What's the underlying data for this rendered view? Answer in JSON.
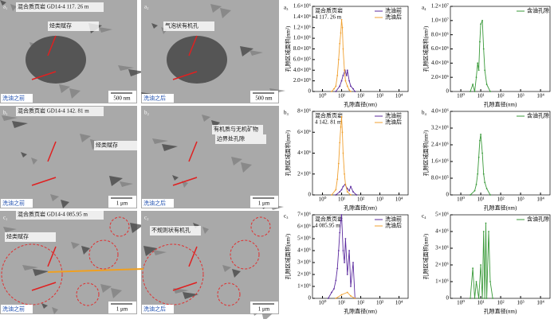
{
  "panels": [
    {
      "label": "a₁",
      "notes": [
        "混合质页岩 GD14-4 117. 26 m",
        "烃类赋存"
      ],
      "stage": "洗油之前",
      "scale": "500 nm"
    },
    {
      "label": "a₂",
      "notes": [
        "气泡状有机孔"
      ],
      "stage": "洗油之后",
      "scale": "500 nm"
    },
    {
      "label": "b₁",
      "notes": [
        "混合质页岩 GD14-4 142. 81 m",
        "烃类赋存"
      ],
      "stage": "洗油之前",
      "scale": "1 μm"
    },
    {
      "label": "b₂",
      "notes": [
        "有机质与无机矿物",
        "边界处孔隙"
      ],
      "stage": "洗油之后",
      "scale": "1 μm"
    },
    {
      "label": "c₁",
      "notes": [
        "混合质页岩 GD14-4 085.95 m",
        "烃类赋存"
      ],
      "stage": "洗油之前",
      "scale": "1 μm"
    },
    {
      "label": "c₂",
      "notes": [
        "不规则状有机孔"
      ],
      "stage": "洗油之后",
      "scale": "1 μm"
    }
  ],
  "chart_data": [
    {
      "type": "line",
      "panel_label": "a₃",
      "annotation": [
        "混合质页岩",
        "4 117. 26 m"
      ],
      "x_label": "孔隙直径(nm)",
      "y_label": "孔隙区域面积(nm²)",
      "log_x": true,
      "legend": "top-right",
      "xlim": [
        0.3,
        30000
      ],
      "xticks": [
        {
          "value": 1,
          "label": "10⁰"
        },
        {
          "value": 10,
          "label": "10¹"
        },
        {
          "value": 100,
          "label": "10²"
        },
        {
          "value": 1000,
          "label": "10³"
        },
        {
          "value": 10000,
          "label": "10⁴"
        }
      ],
      "ylim": [
        0,
        1600000
      ],
      "yticks": [
        {
          "value": 0,
          "label": "0"
        },
        {
          "value": 200000,
          "label": "2.0×10⁵"
        },
        {
          "value": 400000,
          "label": "4.0×10⁵"
        },
        {
          "value": 600000,
          "label": "6.0×10⁵"
        },
        {
          "value": 800000,
          "label": "8.0×10⁵"
        },
        {
          "value": 1000000,
          "label": "1.0×10⁶"
        },
        {
          "value": 1200000,
          "label": "1.2×10⁶"
        },
        {
          "value": 1400000,
          "label": "1.4×10⁶"
        },
        {
          "value": 1600000,
          "label": "1.6×10⁶"
        }
      ],
      "series": [
        {
          "name": "洗油前",
          "color": "#5b2a9e",
          "x": [
            5,
            8,
            10,
            12,
            15,
            18,
            20,
            25,
            30,
            40,
            50
          ],
          "values": [
            0,
            100000,
            200000,
            300000,
            400000,
            300000,
            400000,
            200000,
            100000,
            50000,
            0
          ]
        },
        {
          "name": "洗油后",
          "color": "#f0a030",
          "x": [
            3,
            4,
            5,
            6,
            7,
            8,
            9,
            10,
            11,
            12,
            14,
            16,
            20,
            25,
            30
          ],
          "values": [
            0,
            50000,
            100000,
            300000,
            600000,
            900000,
            1100000,
            1350000,
            1200000,
            800000,
            400000,
            200000,
            100000,
            30000,
            0
          ]
        }
      ]
    },
    {
      "type": "line",
      "panel_label": "a₄",
      "x_label": "孔隙直径(nm)",
      "y_label": "孔隙区域面积(nm²)",
      "log_x": true,
      "legend": "top-right",
      "xlim": [
        0.3,
        30000
      ],
      "xticks": [
        {
          "value": 1,
          "label": "10⁰"
        },
        {
          "value": 10,
          "label": "10¹"
        },
        {
          "value": 100,
          "label": "10²"
        },
        {
          "value": 1000,
          "label": "10³"
        },
        {
          "value": 10000,
          "label": "10⁴"
        }
      ],
      "ylim": [
        0,
        12000000
      ],
      "yticks": [
        {
          "value": 0,
          "label": "0"
        },
        {
          "value": 2000000,
          "label": "2.0×10⁶"
        },
        {
          "value": 4000000,
          "label": "4.0×10⁶"
        },
        {
          "value": 6000000,
          "label": "6.0×10⁶"
        },
        {
          "value": 8000000,
          "label": "8.0×10⁶"
        },
        {
          "value": 10000000,
          "label": "1.0×10⁷"
        },
        {
          "value": 12000000,
          "label": "1.2×10⁷"
        }
      ],
      "series": [
        {
          "name": "含油孔隙",
          "color": "#3a9a3a",
          "x": [
            3,
            4,
            5,
            6,
            7,
            8,
            9,
            10,
            12,
            14,
            16,
            20,
            30
          ],
          "values": [
            0,
            1000000,
            0,
            2000000,
            4000000,
            3000000,
            7000000,
            9500000,
            10000000,
            6000000,
            3000000,
            1000000,
            0
          ]
        }
      ]
    },
    {
      "type": "line",
      "panel_label": "b₃",
      "annotation": [
        "混合质页岩",
        "4 142. 81 m"
      ],
      "x_label": "孔隙直径(nm)",
      "y_label": "孔隙区域面积(nm²)",
      "log_x": true,
      "legend": "top-right",
      "xlim": [
        0.3,
        30000
      ],
      "xticks": [
        {
          "value": 1,
          "label": "10⁰"
        },
        {
          "value": 10,
          "label": "10¹"
        },
        {
          "value": 100,
          "label": "10²"
        },
        {
          "value": 1000,
          "label": "10³"
        },
        {
          "value": 10000,
          "label": "10⁴"
        }
      ],
      "ylim": [
        0,
        8000000
      ],
      "yticks": [
        {
          "value": 0,
          "label": "0"
        },
        {
          "value": 2000000,
          "label": "2×10⁶"
        },
        {
          "value": 4000000,
          "label": "4×10⁶"
        },
        {
          "value": 6000000,
          "label": "6×10⁶"
        },
        {
          "value": 8000000,
          "label": "8×10⁶"
        }
      ],
      "series": [
        {
          "name": "洗油前",
          "color": "#5b2a9e",
          "x": [
            5,
            8,
            10,
            12,
            15,
            20,
            25,
            30,
            40,
            60
          ],
          "values": [
            0,
            300000,
            500000,
            800000,
            1000000,
            600000,
            400000,
            800000,
            300000,
            0
          ]
        },
        {
          "name": "洗油后",
          "color": "#f0a030",
          "x": [
            3,
            5,
            6,
            7,
            8,
            9,
            10,
            11,
            12,
            14,
            16,
            20,
            30
          ],
          "values": [
            0,
            500000,
            1500000,
            3000000,
            5000000,
            6500000,
            7500000,
            6000000,
            4000000,
            2000000,
            1000000,
            300000,
            0
          ]
        }
      ]
    },
    {
      "type": "line",
      "panel_label": "b₄",
      "x_label": "孔隙直径(nm)",
      "y_label": "孔隙区域面积(nm²)",
      "log_x": true,
      "legend": "top-right",
      "xlim": [
        0.3,
        30000
      ],
      "xticks": [
        {
          "value": 1,
          "label": "10⁰"
        },
        {
          "value": 10,
          "label": "10¹"
        },
        {
          "value": 100,
          "label": "10²"
        },
        {
          "value": 1000,
          "label": "10³"
        },
        {
          "value": 10000,
          "label": "10⁴"
        }
      ],
      "ylim": [
        0,
        4000000
      ],
      "yticks": [
        {
          "value": 0,
          "label": "0"
        },
        {
          "value": 800000,
          "label": "8.0×10⁵"
        },
        {
          "value": 1600000,
          "label": "1.6×10⁶"
        },
        {
          "value": 2400000,
          "label": "2.4×10⁶"
        },
        {
          "value": 3200000,
          "label": "3.2×10⁶"
        },
        {
          "value": 4000000,
          "label": "4.0×10⁶"
        }
      ],
      "series": [
        {
          "name": "含油孔隙",
          "color": "#3a9a3a",
          "x": [
            3,
            5,
            6,
            7,
            8,
            9,
            10,
            12,
            14,
            16,
            20,
            30
          ],
          "values": [
            0,
            200000,
            500000,
            1000000,
            1800000,
            2600000,
            2900000,
            2000000,
            1000000,
            600000,
            300000,
            0
          ]
        }
      ]
    },
    {
      "type": "line",
      "panel_label": "c₃",
      "annotation": [
        "混合质页岩",
        "4 085.95 m"
      ],
      "x_label": "孔隙直径(nm)",
      "y_label": "孔隙区域面积(nm²)",
      "log_x": true,
      "legend": "top-right",
      "xlim": [
        0.3,
        30000
      ],
      "xticks": [
        {
          "value": 1,
          "label": "10⁰"
        },
        {
          "value": 10,
          "label": "10¹"
        },
        {
          "value": 100,
          "label": "10²"
        },
        {
          "value": 1000,
          "label": "10³"
        },
        {
          "value": 10000,
          "label": "10⁴"
        }
      ],
      "ylim": [
        0,
        7000000
      ],
      "yticks": [
        {
          "value": 0,
          "label": "0"
        },
        {
          "value": 1000000,
          "label": "1×10⁶"
        },
        {
          "value": 2000000,
          "label": "2×10⁶"
        },
        {
          "value": 3000000,
          "label": "3×10⁶"
        },
        {
          "value": 4000000,
          "label": "4×10⁶"
        },
        {
          "value": 5000000,
          "label": "5×10⁶"
        },
        {
          "value": 6000000,
          "label": "6×10⁶"
        },
        {
          "value": 7000000,
          "label": "7×10⁶"
        }
      ],
      "series": [
        {
          "name": "洗油前",
          "color": "#5b2a9e",
          "x": [
            2,
            3,
            4,
            5,
            6,
            7,
            8,
            9,
            10,
            12,
            14,
            16,
            20,
            25,
            30,
            40,
            50
          ],
          "values": [
            0,
            500000,
            800000,
            1500000,
            2500000,
            4000000,
            5500000,
            6500000,
            7000000,
            4000000,
            3000000,
            5000000,
            2000000,
            4000000,
            1000000,
            3000000,
            0
          ]
        },
        {
          "name": "洗油后",
          "color": "#f0a030",
          "x": [
            5,
            10,
            20,
            30,
            50
          ],
          "values": [
            0,
            300000,
            500000,
            200000,
            0
          ]
        }
      ]
    },
    {
      "type": "line",
      "panel_label": "c₄",
      "x_label": "孔隙直径(nm)",
      "y_label": "孔隙区域面积(nm²)",
      "log_x": true,
      "legend": "top-right",
      "xlim": [
        0.3,
        30000
      ],
      "xticks": [
        {
          "value": 1,
          "label": "10⁰"
        },
        {
          "value": 10,
          "label": "10¹"
        },
        {
          "value": 100,
          "label": "10²"
        },
        {
          "value": 1000,
          "label": "10³"
        },
        {
          "value": 10000,
          "label": "10⁴"
        }
      ],
      "ylim": [
        0,
        5000000
      ],
      "yticks": [
        {
          "value": 0,
          "label": "0"
        },
        {
          "value": 1000000,
          "label": "1×10⁶"
        },
        {
          "value": 2000000,
          "label": "2×10⁶"
        },
        {
          "value": 3000000,
          "label": "3×10⁶"
        },
        {
          "value": 4000000,
          "label": "4×10⁶"
        },
        {
          "value": 5000000,
          "label": "5×10⁶"
        }
      ],
      "series": [
        {
          "name": "含油孔隙",
          "color": "#3a9a3a",
          "x": [
            3,
            4,
            5,
            6,
            8,
            10,
            12,
            14,
            16,
            18,
            20,
            25,
            30,
            40
          ],
          "values": [
            0,
            1800000,
            0,
            1000000,
            0,
            2000000,
            0,
            4000000,
            0,
            4500000,
            0,
            4000000,
            1000000,
            0
          ]
        }
      ]
    }
  ]
}
